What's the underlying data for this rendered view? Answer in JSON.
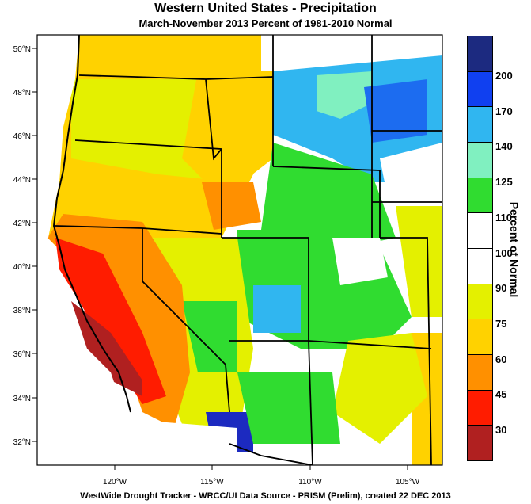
{
  "title": "Western United States - Precipitation",
  "subtitle": "March-November 2013  Percent of 1981-2010 Normal",
  "credit": "WestWide Drought Tracker - WRCC/UI  Data Source - PRISM (Prelim), created 22 DEC 2013",
  "colorbar": {
    "title": "Percent of Normal",
    "labels": [
      "200",
      "170",
      "140",
      "125",
      "110",
      "100",
      "90",
      "75",
      "60",
      "45",
      "30"
    ],
    "colors": [
      "#1c2a80",
      "#1040f0",
      "#30b6f0",
      "#80f0c0",
      "#30dc30",
      "#ffffff",
      "#ffffff",
      "#e4f000",
      "#ffd200",
      "#ff9000",
      "#ff1c00",
      "#b02020"
    ]
  },
  "axes": {
    "lat_labels": [
      "50°N",
      "48°N",
      "46°N",
      "44°N",
      "42°N",
      "40°N",
      "38°N",
      "36°N",
      "34°N",
      "32°N"
    ],
    "lon_labels": [
      "120°W",
      "115°W",
      "110°W",
      "105°W"
    ]
  }
}
